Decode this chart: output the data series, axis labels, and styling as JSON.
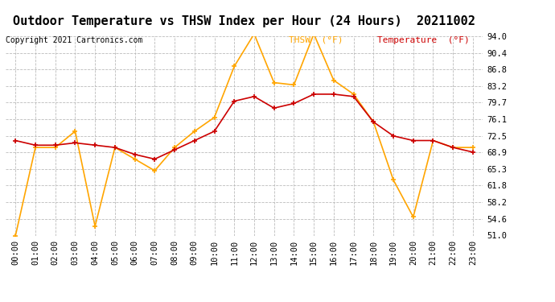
{
  "title": "Outdoor Temperature vs THSW Index per Hour (24 Hours)  20211002",
  "copyright": "Copyright 2021 Cartronics.com",
  "hours": [
    "00:00",
    "01:00",
    "02:00",
    "03:00",
    "04:00",
    "05:00",
    "06:00",
    "07:00",
    "08:00",
    "09:00",
    "10:00",
    "11:00",
    "12:00",
    "13:00",
    "14:00",
    "15:00",
    "16:00",
    "17:00",
    "18:00",
    "19:00",
    "20:00",
    "21:00",
    "22:00",
    "23:00"
  ],
  "thsw": [
    51.0,
    70.0,
    70.0,
    73.5,
    53.0,
    70.0,
    67.5,
    65.0,
    70.0,
    73.5,
    76.5,
    87.5,
    94.5,
    84.0,
    83.5,
    94.5,
    84.5,
    81.5,
    75.5,
    63.0,
    55.0,
    71.5,
    70.0,
    70.0
  ],
  "temp": [
    71.5,
    70.5,
    70.5,
    71.0,
    70.5,
    70.0,
    68.5,
    67.5,
    69.5,
    71.5,
    73.5,
    80.0,
    81.0,
    78.5,
    79.5,
    81.5,
    81.5,
    81.0,
    75.5,
    72.5,
    71.5,
    71.5,
    70.0,
    69.0
  ],
  "thsw_color": "#FFA500",
  "temp_color": "#CC0000",
  "ylim": [
    51.0,
    94.0
  ],
  "yticks": [
    51.0,
    54.6,
    58.2,
    61.8,
    65.3,
    68.9,
    72.5,
    76.1,
    79.7,
    83.2,
    86.8,
    90.4,
    94.0
  ],
  "bg_color": "#ffffff",
  "grid_color": "#bbbbbb",
  "legend_thsw": "THSW  (°F)",
  "legend_temp": "Temperature  (°F)",
  "title_fontsize": 11,
  "copyright_fontsize": 7,
  "tick_fontsize": 7.5,
  "legend_fontsize": 8
}
